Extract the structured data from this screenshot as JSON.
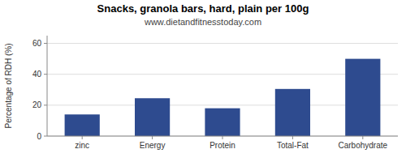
{
  "chart_data": {
    "type": "bar",
    "title": "Snacks, granola bars, hard, plain per 100g",
    "subtitle": "www.dietandfitnesstoday.com",
    "categories": [
      "zinc",
      "Energy",
      "Protein",
      "Total-Fat",
      "Carbohydrate"
    ],
    "values": [
      14,
      24.5,
      18,
      30.5,
      50
    ],
    "color": "#2e4b8f",
    "ylabel": "Percentage of RDH (%)",
    "ylim": [
      0,
      65
    ],
    "yticks": [
      0,
      20,
      40,
      60
    ],
    "grid": true
  }
}
